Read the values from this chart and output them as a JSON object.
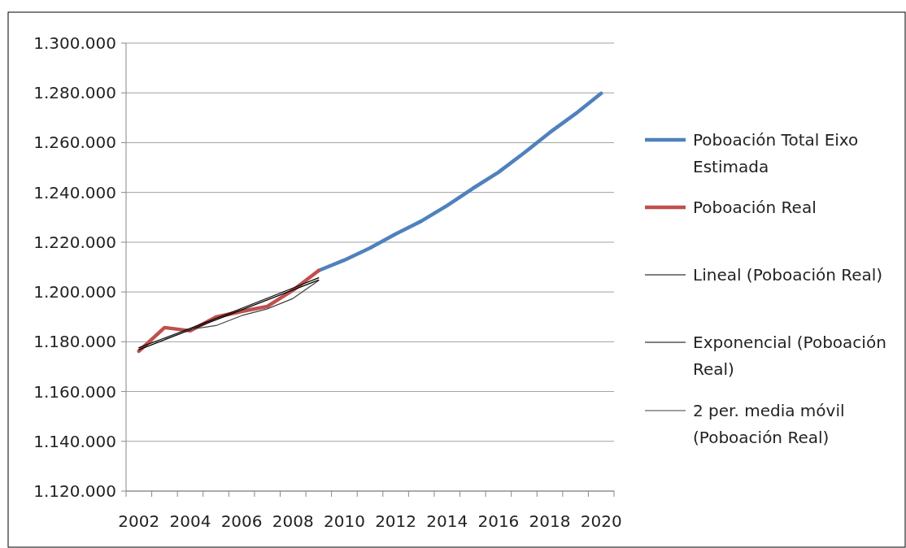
{
  "chart_data": {
    "type": "line",
    "categories": [
      "2002",
      null,
      "2004",
      null,
      "2006",
      null,
      "2008",
      null,
      "2010",
      null,
      "2012",
      null,
      "2014",
      null,
      "2016",
      null,
      "2018",
      null,
      "2020"
    ],
    "series": [
      {
        "name": "Poboación Total Eixo Estimada",
        "color": "#4f81bd",
        "values": [
          null,
          null,
          null,
          null,
          null,
          null,
          null,
          1208600,
          1212800,
          1217700,
          1223300,
          1228500,
          1234700,
          1241600,
          1248100,
          1255900,
          1264100,
          1271600,
          1279800
        ]
      },
      {
        "name": "Poboación Real",
        "color": "#c0504d",
        "values": [
          1176200,
          1185700,
          1184400,
          1189900,
          1192200,
          1194200,
          1200700,
          1208600,
          null,
          null,
          null,
          null,
          null,
          null,
          null,
          null,
          null,
          null,
          null
        ]
      },
      {
        "name": "Lineal (Poboación Real)",
        "color": "#000000",
        "values": [
          1176800,
          1180800,
          1184800,
          1188800,
          1192800,
          1196800,
          1200800,
          1204800,
          null,
          null,
          null,
          null,
          null,
          null,
          null,
          null,
          null,
          null,
          null
        ]
      },
      {
        "name": "Exponencial (Poboación Real)",
        "color": "#000000",
        "values": [
          1177600,
          1181500,
          1185400,
          1189400,
          1193400,
          1197500,
          1201600,
          1205700,
          null,
          null,
          null,
          null,
          null,
          null,
          null,
          null,
          null,
          null,
          null
        ]
      },
      {
        "name": "2 per. media móvil (Poboación Real)",
        "color": "#404040",
        "values": [
          null,
          1181000,
          1185000,
          1186500,
          1190500,
          1193200,
          1197400,
          1204600,
          null,
          null,
          null,
          null,
          null,
          null,
          null,
          null,
          null,
          null,
          null
        ]
      }
    ],
    "ylim": [
      1120000,
      1300000
    ],
    "yticks": [
      {
        "value": 1120000,
        "label": "1.120.000"
      },
      {
        "value": 1140000,
        "label": "1.140.000"
      },
      {
        "value": 1160000,
        "label": "1.160.000"
      },
      {
        "value": 1180000,
        "label": "1.180.000"
      },
      {
        "value": 1200000,
        "label": "1.200.000"
      },
      {
        "value": 1220000,
        "label": "1.220.000"
      },
      {
        "value": 1240000,
        "label": "1.240.000"
      },
      {
        "value": 1260000,
        "label": "1.260.000"
      },
      {
        "value": 1280000,
        "label": "1.280.000"
      },
      {
        "value": 1300000,
        "label": "1.300.000"
      }
    ],
    "grid": "y",
    "legend": "right",
    "marker": "none",
    "line_style": "solid"
  }
}
